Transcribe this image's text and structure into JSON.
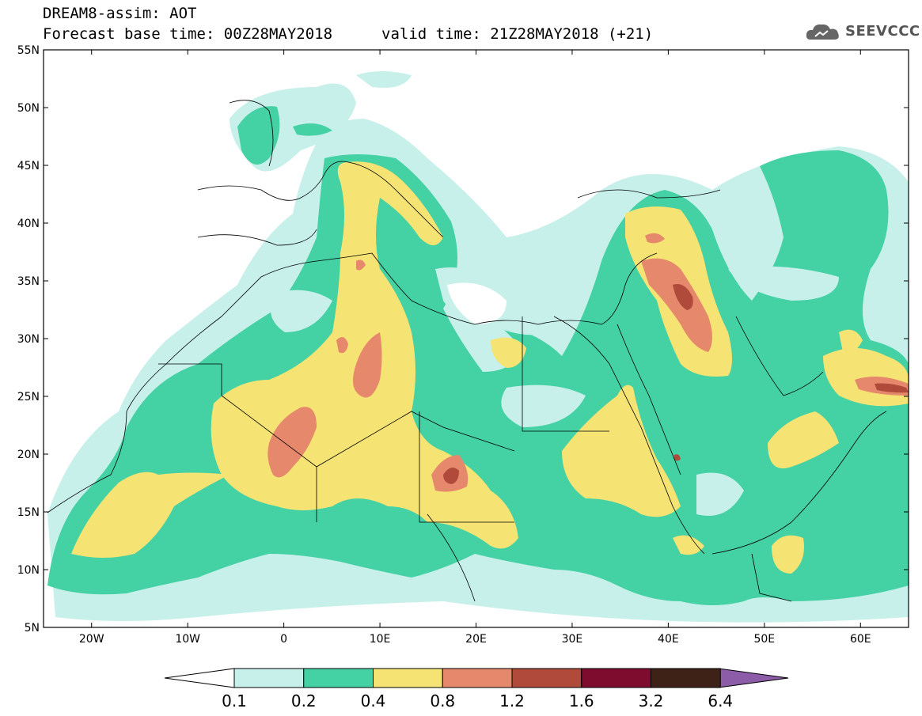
{
  "header": {
    "line1": "DREAM8-assim: AOT",
    "line2": "Forecast base time: 00Z28MAY2018",
    "valid": "valid time: 21Z28MAY2018 (+21)",
    "logo": "SEEVCCC"
  },
  "map": {
    "lat_labels": [
      "55N",
      "50N",
      "45N",
      "40N",
      "35N",
      "30N",
      "25N",
      "20N",
      "15N",
      "10N",
      "5N"
    ],
    "lat_values": [
      55,
      50,
      45,
      40,
      35,
      30,
      25,
      20,
      15,
      10,
      5
    ],
    "lon_labels": [
      "20W",
      "10W",
      "0",
      "10E",
      "20E",
      "30E",
      "40E",
      "50E",
      "60E"
    ],
    "lon_values": [
      -20,
      -10,
      0,
      10,
      20,
      30,
      40,
      50,
      60
    ],
    "lon_range": [
      -25,
      65
    ],
    "lat_range": [
      5,
      55
    ]
  },
  "colorbar": {
    "labels": [
      "0.1",
      "0.2",
      "0.4",
      "0.8",
      "1.2",
      "1.6",
      "3.2",
      "6.4"
    ],
    "colors": [
      "#c8f0ea",
      "#44d1a4",
      "#f5e373",
      "#e6886b",
      "#b04a3a",
      "#7e0c2e",
      "#3e2218",
      "#8c5ca8"
    ]
  }
}
